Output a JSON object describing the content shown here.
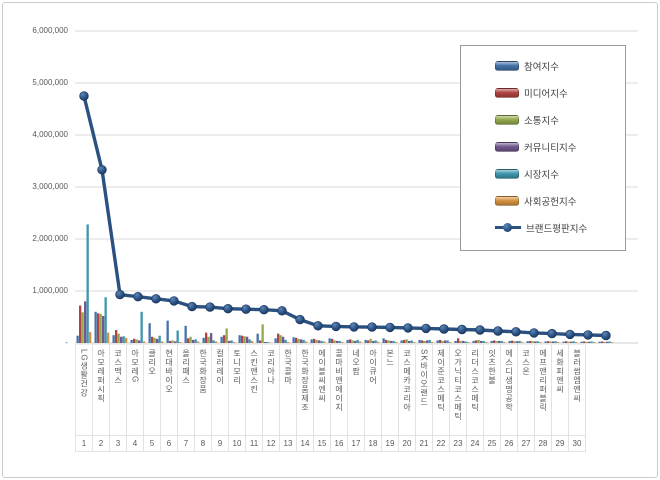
{
  "frame": {
    "border_color": "#cbcbcb",
    "background": "#ffffff"
  },
  "chart_data": {
    "type": "bar",
    "subtype": "grouped-bars-with-line-overlay",
    "title": "",
    "xlabel": "",
    "ylabel": "",
    "ylim": [
      0,
      6000000
    ],
    "grid": true,
    "legend_position": "top-right",
    "y_axis": {
      "ticks": [
        {
          "value": 6000000,
          "label": "6,000,000"
        },
        {
          "value": 5000000,
          "label": "5,000,000"
        },
        {
          "value": 4000000,
          "label": "4,000,000"
        },
        {
          "value": 3000000,
          "label": "3,000,000"
        },
        {
          "value": 2000000,
          "label": "2,000,000"
        },
        {
          "value": 1000000,
          "label": "1,000,000"
        },
        {
          "value": 0,
          "label": "-"
        }
      ]
    },
    "categories": [
      {
        "rank": "1",
        "name": "LG생활건강"
      },
      {
        "rank": "2",
        "name": "아모레퍼시픽"
      },
      {
        "rank": "3",
        "name": "코스맥스"
      },
      {
        "rank": "4",
        "name": "아모레G"
      },
      {
        "rank": "5",
        "name": "클리오"
      },
      {
        "rank": "6",
        "name": "현대바이오"
      },
      {
        "rank": "7",
        "name": "올리패스"
      },
      {
        "rank": "8",
        "name": "한국화장품"
      },
      {
        "rank": "9",
        "name": "컬러레이"
      },
      {
        "rank": "10",
        "name": "토니모리"
      },
      {
        "rank": "11",
        "name": "스킨앤스킨"
      },
      {
        "rank": "12",
        "name": "코리아나"
      },
      {
        "rank": "13",
        "name": "한국콜마"
      },
      {
        "rank": "14",
        "name": "한국화장품제조"
      },
      {
        "rank": "15",
        "name": "에이블씨엔씨"
      },
      {
        "rank": "16",
        "name": "콜마비앤에이치"
      },
      {
        "rank": "17",
        "name": "네오팜"
      },
      {
        "rank": "18",
        "name": "아이큐어"
      },
      {
        "rank": "19",
        "name": "본느"
      },
      {
        "rank": "20",
        "name": "코스메카코리아"
      },
      {
        "rank": "21",
        "name": "SK바이오랜드"
      },
      {
        "rank": "22",
        "name": "제이준코스메틱"
      },
      {
        "rank": "23",
        "name": "오가닉티코스메틱"
      },
      {
        "rank": "24",
        "name": "리더스코스메틱"
      },
      {
        "rank": "25",
        "name": "잇츠한불"
      },
      {
        "rank": "26",
        "name": "에스디생명공학"
      },
      {
        "rank": "27",
        "name": "코스온"
      },
      {
        "rank": "28",
        "name": "에프앤리퍼블릭"
      },
      {
        "rank": "29",
        "name": "세화피앤씨"
      },
      {
        "rank": "30",
        "name": "블러썸엠앤씨"
      }
    ],
    "series": [
      {
        "name": "참여지수",
        "color": "#4572A7",
        "values": [
          140000,
          600000,
          150000,
          60000,
          380000,
          430000,
          330000,
          100000,
          120000,
          150000,
          180000,
          90000,
          110000,
          70000,
          90000,
          60000,
          60000,
          90000,
          50000,
          60000,
          50000,
          40000,
          40000,
          40000,
          40000,
          35000,
          30000,
          25000,
          25000,
          25000
        ]
      },
      {
        "name": "미디어지수",
        "color": "#B04442",
        "values": [
          720000,
          570000,
          250000,
          80000,
          120000,
          40000,
          90000,
          200000,
          150000,
          140000,
          50000,
          180000,
          100000,
          80000,
          80000,
          70000,
          50000,
          60000,
          60000,
          50000,
          60000,
          90000,
          50000,
          50000,
          45000,
          40000,
          35000,
          35000,
          30000,
          30000
        ]
      },
      {
        "name": "소통지수",
        "color": "#93A94E",
        "values": [
          590000,
          560000,
          180000,
          70000,
          100000,
          50000,
          120000,
          120000,
          280000,
          130000,
          360000,
          150000,
          80000,
          60000,
          50000,
          50000,
          80000,
          50000,
          70000,
          40000,
          40000,
          40000,
          60000,
          40000,
          35000,
          35000,
          30000,
          25000,
          25000,
          20000
        ]
      },
      {
        "name": "커뮤니티지수",
        "color": "#71588F",
        "values": [
          800000,
          520000,
          120000,
          50000,
          80000,
          30000,
          60000,
          190000,
          40000,
          120000,
          20000,
          120000,
          70000,
          50000,
          40000,
          40000,
          40000,
          40000,
          40000,
          50000,
          50000,
          40000,
          40000,
          40000,
          35000,
          30000,
          30000,
          25000,
          25000,
          25000
        ]
      },
      {
        "name": "시장지수",
        "color": "#3D96AE",
        "values": [
          2280000,
          880000,
          130000,
          600000,
          140000,
          240000,
          70000,
          50000,
          50000,
          70000,
          20000,
          60000,
          60000,
          40000,
          40000,
          60000,
          50000,
          40000,
          50000,
          60000,
          50000,
          30000,
          40000,
          40000,
          40000,
          35000,
          35000,
          35000,
          30000,
          30000
        ]
      },
      {
        "name": "사회공헌지수",
        "color": "#D6933F",
        "values": [
          210000,
          200000,
          100000,
          30000,
          30000,
          20000,
          30000,
          30000,
          20000,
          40000,
          10000,
          20000,
          30000,
          30000,
          20000,
          30000,
          25000,
          20000,
          20000,
          20000,
          20000,
          20000,
          20000,
          20000,
          20000,
          20000,
          20000,
          20000,
          20000,
          15000
        ]
      }
    ],
    "line_series": {
      "name": "브랜드평판지수",
      "line_color": "#2B5180",
      "marker_color": "#1F4063",
      "values": [
        4750000,
        3330000,
        930000,
        890000,
        850000,
        810000,
        700000,
        690000,
        660000,
        650000,
        640000,
        620000,
        450000,
        330000,
        320000,
        310000,
        305000,
        300000,
        290000,
        280000,
        270000,
        260000,
        250000,
        230000,
        215000,
        195000,
        180000,
        165000,
        155000,
        145000
      ]
    },
    "legend_entries": [
      "참여지수",
      "미디어지수",
      "소통지수",
      "커뮤니티지수",
      "시장지수",
      "사회공헌지수",
      "브랜드평판지수"
    ]
  }
}
